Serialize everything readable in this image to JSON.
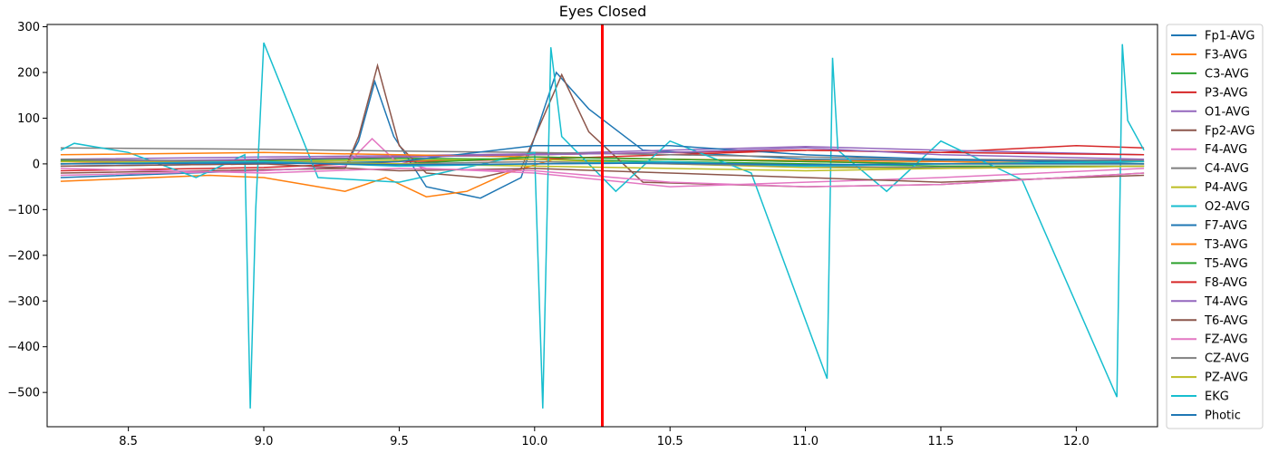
{
  "chart_data": {
    "type": "line",
    "title": "Eyes Closed",
    "xlabel": "",
    "ylabel": "",
    "xlim": [
      8.2,
      12.3
    ],
    "ylim": [
      -575,
      305
    ],
    "x_ticks": [
      8.5,
      9.0,
      9.5,
      10.0,
      10.5,
      11.0,
      11.5,
      12.0
    ],
    "x_tick_labels": [
      "8.5",
      "9.0",
      "9.5",
      "10.0",
      "10.5",
      "11.0",
      "11.5",
      "12.0"
    ],
    "y_ticks": [
      300,
      200,
      100,
      0,
      -100,
      -200,
      -300,
      -400,
      -500
    ],
    "y_tick_labels": [
      "300",
      "200",
      "100",
      "0",
      "−100",
      "−200",
      "−300",
      "−400",
      "−500"
    ],
    "grid": false,
    "legend_position": "outside-right",
    "marker": {
      "x": 10.25,
      "color": "#ff0000"
    },
    "series": [
      {
        "name": "Fp1-AVG",
        "color": "#1f77b4",
        "x": [
          8.25,
          9.3,
          9.35,
          9.41,
          9.48,
          9.6,
          9.8,
          9.95,
          10.08,
          10.2,
          10.4,
          11.0,
          12.25
        ],
        "y": [
          -30,
          -8,
          50,
          180,
          60,
          -50,
          -75,
          -30,
          200,
          120,
          30,
          10,
          5
        ]
      },
      {
        "name": "F3-AVG",
        "color": "#ff7f0e",
        "x": [
          8.25,
          8.8,
          9.0,
          9.2,
          9.3,
          9.45,
          9.6,
          9.75,
          9.9,
          10.1,
          10.5,
          11.5,
          12.25
        ],
        "y": [
          -38,
          -25,
          -30,
          -50,
          -60,
          -30,
          -72,
          -60,
          -20,
          15,
          10,
          5,
          0
        ]
      },
      {
        "name": "C3-AVG",
        "color": "#2ca02c",
        "x": [
          8.25,
          9.0,
          9.5,
          10.0,
          10.5,
          11.0,
          11.5,
          12.25
        ],
        "y": [
          5,
          8,
          12,
          10,
          5,
          0,
          -5,
          -5
        ]
      },
      {
        "name": "P3-AVG",
        "color": "#d62728",
        "x": [
          8.25,
          9.0,
          9.5,
          10.0,
          10.5,
          11.0,
          11.5,
          12.0,
          12.25
        ],
        "y": [
          -15,
          -8,
          5,
          10,
          20,
          30,
          25,
          40,
          35
        ]
      },
      {
        "name": "O1-AVG",
        "color": "#9467bd",
        "x": [
          8.25,
          9.0,
          9.5,
          10.0,
          10.5,
          11.0,
          11.5,
          12.25
        ],
        "y": [
          10,
          15,
          18,
          22,
          30,
          38,
          30,
          20
        ]
      },
      {
        "name": "Fp2-AVG",
        "color": "#8c564b",
        "x": [
          8.25,
          9.3,
          9.35,
          9.42,
          9.5,
          9.6,
          9.8,
          9.95,
          10.1,
          10.2,
          10.4,
          11.0,
          11.5,
          12.25
        ],
        "y": [
          -20,
          -10,
          60,
          215,
          40,
          -20,
          -30,
          -10,
          195,
          70,
          -40,
          -50,
          -45,
          -20
        ]
      },
      {
        "name": "F4-AVG",
        "color": "#e377c2",
        "x": [
          8.25,
          9.0,
          9.3,
          9.4,
          9.48,
          9.6,
          10.0,
          10.5,
          11.0,
          11.5,
          12.25
        ],
        "y": [
          -25,
          -15,
          -5,
          55,
          10,
          -10,
          -20,
          -50,
          -40,
          -30,
          -10
        ]
      },
      {
        "name": "C4-AVG",
        "color": "#7f7f7f",
        "x": [
          8.25,
          9.0,
          9.5,
          10.0,
          10.5,
          11.0,
          11.5,
          12.25
        ],
        "y": [
          35,
          32,
          28,
          25,
          20,
          15,
          10,
          8
        ]
      },
      {
        "name": "P4-AVG",
        "color": "#bcbd22",
        "x": [
          8.25,
          9.0,
          9.5,
          10.0,
          10.5,
          11.0,
          11.5,
          12.25
        ],
        "y": [
          0,
          5,
          8,
          10,
          0,
          -8,
          -10,
          -5
        ]
      },
      {
        "name": "O2-AVG",
        "color": "#17becf",
        "x": [
          8.25,
          8.3,
          8.5,
          8.75,
          8.93,
          8.95,
          8.97,
          9.0,
          9.2,
          9.5,
          10.0,
          10.03,
          10.06,
          10.1,
          10.3,
          10.5,
          10.8,
          11.08,
          11.1,
          11.12,
          11.3,
          11.5,
          11.8,
          12.15,
          12.17,
          12.19,
          12.25
        ],
        "y": [
          30,
          45,
          25,
          -30,
          20,
          -535,
          -100,
          265,
          -30,
          -40,
          25,
          -535,
          255,
          60,
          -60,
          50,
          -20,
          -470,
          232,
          30,
          -60,
          50,
          -35,
          -510,
          262,
          95,
          30
        ]
      },
      {
        "name": "F7-AVG",
        "color": "#1f77b4",
        "x": [
          8.25,
          9.0,
          9.5,
          10.0,
          10.5,
          11.0,
          11.5,
          12.25
        ],
        "y": [
          -5,
          0,
          5,
          40,
          40,
          20,
          10,
          0
        ]
      },
      {
        "name": "T3-AVG",
        "color": "#ff7f0e",
        "x": [
          8.25,
          9.0,
          9.5,
          10.0,
          10.5,
          11.0,
          11.5,
          12.25
        ],
        "y": [
          20,
          25,
          20,
          15,
          10,
          5,
          0,
          0
        ]
      },
      {
        "name": "T5-AVG",
        "color": "#2ca02c",
        "x": [
          8.25,
          9.0,
          9.5,
          10.0,
          10.5,
          11.0,
          11.5,
          12.25
        ],
        "y": [
          8,
          5,
          0,
          15,
          10,
          5,
          0,
          5
        ]
      },
      {
        "name": "F8-AVG",
        "color": "#d62728",
        "x": [
          8.25,
          9.0,
          9.5,
          10.0,
          10.5,
          11.0,
          11.5,
          12.25
        ],
        "y": [
          0,
          10,
          15,
          20,
          25,
          30,
          25,
          20
        ]
      },
      {
        "name": "T4-AVG",
        "color": "#9467bd",
        "x": [
          8.25,
          9.0,
          9.5,
          10.0,
          10.5,
          11.0,
          11.5,
          12.25
        ],
        "y": [
          5,
          10,
          15,
          20,
          25,
          35,
          20,
          10
        ]
      },
      {
        "name": "T6-AVG",
        "color": "#8c564b",
        "x": [
          8.25,
          9.0,
          9.5,
          10.0,
          10.5,
          11.0,
          11.5,
          12.25
        ],
        "y": [
          -5,
          0,
          -15,
          -10,
          -20,
          -30,
          -40,
          -25
        ]
      },
      {
        "name": "FZ-AVG",
        "color": "#e377c2",
        "x": [
          8.25,
          9.0,
          9.5,
          10.0,
          10.5,
          11.0,
          11.5,
          12.25
        ],
        "y": [
          -10,
          -20,
          -10,
          -15,
          -40,
          -50,
          -45,
          -20
        ]
      },
      {
        "name": "CZ-AVG",
        "color": "#7f7f7f",
        "x": [
          8.25,
          9.0,
          9.5,
          10.0,
          10.5,
          11.0,
          11.5,
          12.25
        ],
        "y": [
          10,
          5,
          0,
          5,
          0,
          -5,
          -8,
          -5
        ]
      },
      {
        "name": "PZ-AVG",
        "color": "#bcbd22",
        "x": [
          8.25,
          9.0,
          9.5,
          10.0,
          10.5,
          11.0,
          11.5,
          12.25
        ],
        "y": [
          5,
          3,
          0,
          -5,
          -10,
          -15,
          -10,
          -5
        ]
      },
      {
        "name": "EKG",
        "color": "#17becf",
        "x": [
          8.25,
          9.0,
          9.5,
          10.0,
          10.5,
          11.0,
          11.5,
          12.25
        ],
        "y": [
          0,
          5,
          -5,
          0,
          5,
          -5,
          0,
          5
        ]
      },
      {
        "name": "Photic",
        "color": "#1f77b4",
        "x": [
          8.25,
          9.0,
          9.5,
          10.0,
          10.5,
          11.0,
          11.5,
          12.25
        ],
        "y": [
          0,
          2,
          -2,
          0,
          2,
          -2,
          0,
          0
        ]
      }
    ]
  }
}
